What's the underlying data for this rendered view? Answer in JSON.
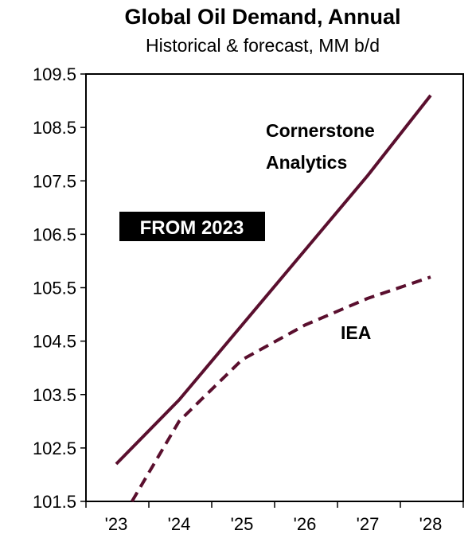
{
  "chart_data": {
    "type": "line",
    "title": "Global Oil Demand, Annual",
    "subtitle": "Historical & forecast, MM b/d",
    "xlabel": "",
    "ylabel": "",
    "x_categories": [
      "'23",
      "'24",
      "'25",
      "'26",
      "'27",
      "'28"
    ],
    "y_ticks": [
      "101.5",
      "102.5",
      "103.5",
      "104.5",
      "105.5",
      "106.5",
      "107.5",
      "108.5",
      "109.5"
    ],
    "ylim": [
      101.5,
      109.5
    ],
    "grid": false,
    "series": [
      {
        "name": "Cornerstone Analytics",
        "style": "solid",
        "color": "#5a0f2e",
        "points": [
          {
            "x": 2023.0,
            "y": 102.2
          },
          {
            "x": 2024.0,
            "y": 103.4
          },
          {
            "x": 2025.0,
            "y": 104.8
          },
          {
            "x": 2026.0,
            "y": 106.2
          },
          {
            "x": 2027.0,
            "y": 107.6
          },
          {
            "x": 2028.0,
            "y": 109.1
          }
        ]
      },
      {
        "name": "IEA",
        "style": "dashed",
        "color": "#5a0f2e",
        "points": [
          {
            "x": 2023.25,
            "y": 101.5
          },
          {
            "x": 2024.0,
            "y": 103.0
          },
          {
            "x": 2025.0,
            "y": 104.15
          },
          {
            "x": 2026.0,
            "y": 104.8
          },
          {
            "x": 2027.0,
            "y": 105.3
          },
          {
            "x": 2028.0,
            "y": 105.7
          }
        ]
      }
    ],
    "annotations": [
      {
        "text": "Cornerstone",
        "series": "Cornerstone Analytics"
      },
      {
        "text": "Analytics",
        "series": "Cornerstone Analytics"
      },
      {
        "text": "IEA",
        "series": "IEA"
      }
    ],
    "badge": {
      "text": "FROM 2023",
      "background": "#000000",
      "color": "#ffffff"
    }
  }
}
